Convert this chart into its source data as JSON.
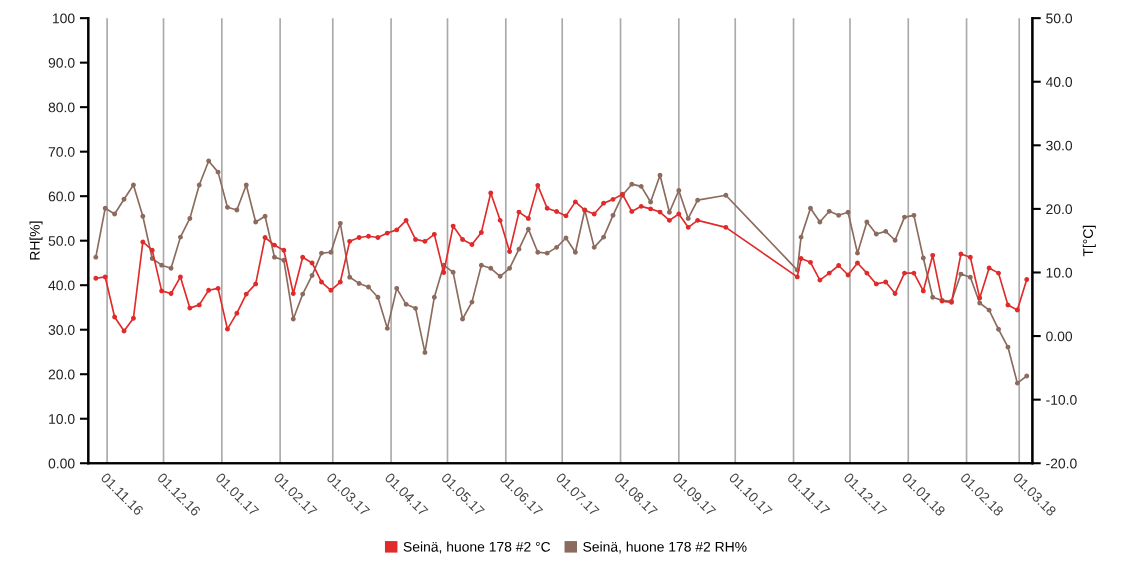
{
  "chart_data": {
    "type": "line",
    "ylabel": "RH[%]",
    "y2label": "T[°C]",
    "x": [
      "2016-10-26",
      "2016-10-31",
      "2016-11-05",
      "2016-11-10",
      "2016-11-15",
      "2016-11-20",
      "2016-11-25",
      "2016-11-30",
      "2016-12-05",
      "2016-12-10",
      "2016-12-15",
      "2016-12-20",
      "2016-12-25",
      "2016-12-30",
      "2017-01-04",
      "2017-01-09",
      "2017-01-14",
      "2017-01-19",
      "2017-01-24",
      "2017-01-29",
      "2017-02-03",
      "2017-02-08",
      "2017-02-13",
      "2017-02-18",
      "2017-02-23",
      "2017-02-28",
      "2017-03-05",
      "2017-03-10",
      "2017-03-15",
      "2017-03-20",
      "2017-03-25",
      "2017-03-30",
      "2017-04-04",
      "2017-04-09",
      "2017-04-14",
      "2017-04-19",
      "2017-04-24",
      "2017-04-29",
      "2017-05-04",
      "2017-05-09",
      "2017-05-14",
      "2017-05-19",
      "2017-05-24",
      "2017-05-29",
      "2017-06-03",
      "2017-06-08",
      "2017-06-13",
      "2017-06-18",
      "2017-06-23",
      "2017-06-28",
      "2017-07-03",
      "2017-07-08",
      "2017-07-13",
      "2017-07-18",
      "2017-07-23",
      "2017-07-28",
      "2017-08-02",
      "2017-08-07",
      "2017-08-12",
      "2017-08-17",
      "2017-08-22",
      "2017-08-27",
      "2017-09-01",
      "2017-09-06",
      "2017-09-11",
      "2017-09-26",
      "2017-11-03",
      "2017-11-05",
      "2017-11-10",
      "2017-11-15",
      "2017-11-20",
      "2017-11-25",
      "2017-11-30",
      "2017-12-05",
      "2017-12-10",
      "2017-12-15",
      "2017-12-20",
      "2017-12-25",
      "2017-12-30",
      "2018-01-04",
      "2018-01-09",
      "2018-01-14",
      "2018-01-19",
      "2018-01-24",
      "2018-01-29",
      "2018-02-03",
      "2018-02-08",
      "2018-02-13",
      "2018-02-18",
      "2018-02-23",
      "2018-02-28",
      "2018-03-05"
    ],
    "series": [
      {
        "name": "Seinä, huone 178 #2 °C",
        "color": "#e02b2b",
        "axis": "y2",
        "values": [
          9.1,
          9.3,
          3.0,
          0.8,
          2.8,
          14.8,
          13.5,
          7.1,
          6.7,
          9.3,
          4.4,
          4.9,
          7.2,
          7.5,
          1.1,
          3.6,
          6.6,
          8.2,
          15.5,
          14.3,
          13.5,
          6.7,
          12.4,
          11.5,
          8.5,
          7.2,
          8.5,
          14.9,
          15.5,
          15.7,
          15.5,
          16.2,
          16.7,
          18.2,
          15.2,
          14.9,
          16.0,
          10.0,
          17.3,
          15.2,
          14.4,
          16.3,
          22.5,
          18.2,
          13.3,
          19.5,
          18.5,
          23.7,
          20.1,
          19.6,
          18.9,
          21.1,
          19.8,
          19.2,
          20.9,
          21.5,
          22.3,
          19.6,
          20.4,
          20.0,
          19.5,
          18.2,
          19.2,
          17.1,
          18.2,
          17.1,
          9.3,
          12.2,
          11.6,
          8.8,
          9.9,
          11.1,
          9.6,
          11.5,
          9.9,
          8.2,
          8.5,
          6.7,
          9.9,
          9.9,
          7.1,
          12.7,
          5.5,
          5.3,
          12.9,
          12.4,
          6.0,
          10.7,
          9.9,
          4.9,
          4.1,
          8.9
        ]
      },
      {
        "name": "Seinä, huone 178 #2 RH%",
        "color": "#8c6b5e",
        "axis": "y",
        "values": [
          46.3,
          57.3,
          56,
          59.3,
          62.5,
          55.5,
          46,
          44.5,
          43.8,
          50.8,
          55,
          62.5,
          67.9,
          65.4,
          57.5,
          56.9,
          62.5,
          54.2,
          55.5,
          46.3,
          45.6,
          32.4,
          38,
          42.2,
          47.2,
          47.4,
          53.9,
          41.8,
          40.4,
          39.6,
          37.3,
          30.3,
          39.3,
          35.7,
          34.8,
          24.9,
          37.3,
          44.5,
          42.9,
          32.4,
          36.2,
          44.5,
          43.8,
          42,
          43.8,
          48.1,
          52.6,
          47.4,
          47.2,
          48.5,
          50.6,
          47.4,
          56.9,
          48.5,
          50.8,
          55.7,
          60.2,
          62.7,
          62.2,
          58.7,
          64.7,
          56.4,
          61.3,
          55,
          59.1,
          60.2,
          43.4,
          50.8,
          57.3,
          54.2,
          56.6,
          55.7,
          56.4,
          47.2,
          54.2,
          51.5,
          52.1,
          50.1,
          55.3,
          55.7,
          46.1,
          37.3,
          36.6,
          36.4,
          42.5,
          41.8,
          36,
          34.4,
          30.1,
          26.1,
          18,
          19.6
        ]
      }
    ],
    "xlim": [
      "2016-10-22",
      "2018-03-08"
    ],
    "xticks": [
      {
        "value": "2016-11-01",
        "label": "01.11.16"
      },
      {
        "value": "2016-12-01",
        "label": "01.12.16"
      },
      {
        "value": "2017-01-01",
        "label": "01.01.17"
      },
      {
        "value": "2017-02-01",
        "label": "01.02.17"
      },
      {
        "value": "2017-03-01",
        "label": "01.03.17"
      },
      {
        "value": "2017-04-01",
        "label": "01.04.17"
      },
      {
        "value": "2017-05-01",
        "label": "01.05.17"
      },
      {
        "value": "2017-06-01",
        "label": "01.06.17"
      },
      {
        "value": "2017-07-01",
        "label": "01.07.17"
      },
      {
        "value": "2017-08-01",
        "label": "01.08.17"
      },
      {
        "value": "2017-09-01",
        "label": "01.09.17"
      },
      {
        "value": "2017-10-01",
        "label": "01.10.17"
      },
      {
        "value": "2017-11-01",
        "label": "01.11.17"
      },
      {
        "value": "2017-12-01",
        "label": "01.12.17"
      },
      {
        "value": "2018-01-01",
        "label": "01.01.18"
      },
      {
        "value": "2018-02-01",
        "label": "01.02.18"
      },
      {
        "value": "2018-03-01",
        "label": "01.03.18"
      }
    ],
    "ylim": [
      0,
      100
    ],
    "yticks": [
      {
        "value": 0,
        "label": "0.00"
      },
      {
        "value": 10,
        "label": "10.0"
      },
      {
        "value": 20,
        "label": "20.0"
      },
      {
        "value": 30,
        "label": "30.0"
      },
      {
        "value": 40,
        "label": "40.0"
      },
      {
        "value": 50,
        "label": "50.0"
      },
      {
        "value": 60,
        "label": "60.0"
      },
      {
        "value": 70,
        "label": "70.0"
      },
      {
        "value": 80,
        "label": "80.0"
      },
      {
        "value": 90,
        "label": "90.0"
      },
      100
    ],
    "y2lim": [
      -20,
      50
    ],
    "y2ticks": [
      {
        "value": -20,
        "label": "-20.0"
      },
      {
        "value": -10,
        "label": "-10.0"
      },
      {
        "value": 0,
        "label": "0.00"
      },
      {
        "value": 10,
        "label": "10.0"
      },
      {
        "value": 20,
        "label": "20.0"
      },
      {
        "value": 30,
        "label": "30.0"
      },
      {
        "value": 40,
        "label": "40.0"
      },
      {
        "value": 50,
        "label": "50.0"
      }
    ],
    "grid": "x",
    "legend": "bottom",
    "marker": "circle",
    "line_style": "solid"
  }
}
